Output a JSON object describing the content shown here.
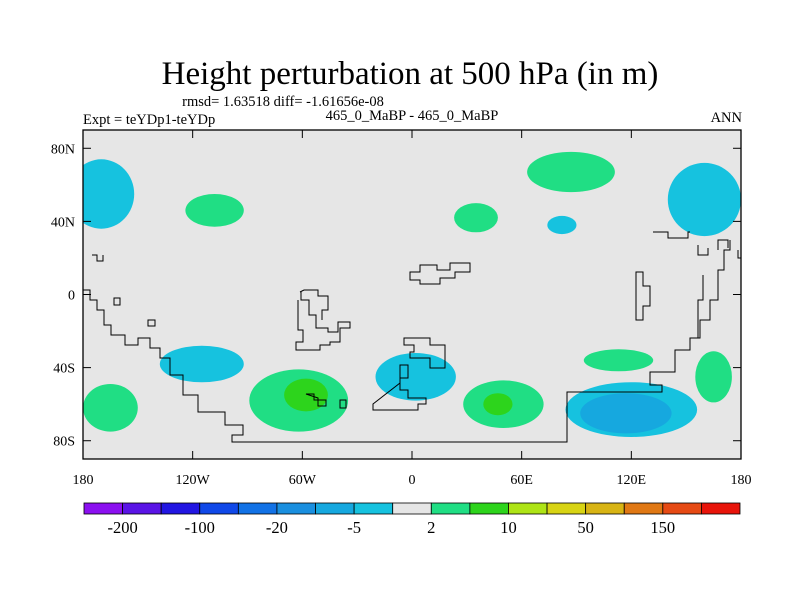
{
  "chart_data": {
    "type": "heatmap",
    "title": "Height perturbation at 500 hPa (in m)",
    "subtitle": "rmsd= 1.63518 diff= -1.61656e-08",
    "left_label": "Expt = teYDp1-teYDp",
    "center_label": "465_0_MaBP - 465_0_MaBP",
    "right_label": "ANN",
    "x_range": [
      -180,
      180
    ],
    "y_range": [
      -90,
      90
    ],
    "x_ticks": [
      {
        "value": -180,
        "label": "180"
      },
      {
        "value": -120,
        "label": "120W"
      },
      {
        "value": -60,
        "label": "60W"
      },
      {
        "value": 0,
        "label": "0"
      },
      {
        "value": 60,
        "label": "60E"
      },
      {
        "value": 120,
        "label": "120E"
      },
      {
        "value": 180,
        "label": "180"
      }
    ],
    "y_ticks": [
      {
        "value": 80,
        "label": "80N"
      },
      {
        "value": 40,
        "label": "40N"
      },
      {
        "value": 0,
        "label": "0"
      },
      {
        "value": -40,
        "label": "40S"
      },
      {
        "value": -80,
        "label": "80S"
      }
    ],
    "colorbar": {
      "levels": [
        -200,
        -150,
        -100,
        -50,
        -20,
        -10,
        -5,
        -2,
        2,
        5,
        10,
        20,
        50,
        100,
        150,
        200
      ],
      "labels": [
        "-200",
        "-100",
        "-20",
        "-5",
        "2",
        "10",
        "50",
        "150"
      ],
      "colors": [
        "#8b10f0",
        "#5a14e6",
        "#2216e2",
        "#1048e8",
        "#1272e6",
        "#1a8fdf",
        "#16a8df",
        "#16c2df",
        "#e6e6e6",
        "#20de84",
        "#2dd41c",
        "#aee416",
        "#d8d414",
        "#d8b414",
        "#e07814",
        "#e64a14",
        "#e8140a"
      ]
    },
    "anomalies": [
      {
        "kind": "negative",
        "level": "-5 to -2",
        "lon": -170,
        "lat": 55,
        "rx": 18,
        "ry": 19
      },
      {
        "kind": "positive",
        "level": "2 to 5",
        "lon": -108,
        "lat": 46,
        "rx": 16,
        "ry": 9
      },
      {
        "kind": "positive",
        "level": "2 to 5",
        "lon": 35,
        "lat": 42,
        "rx": 12,
        "ry": 8
      },
      {
        "kind": "positive",
        "level": "2 to 5",
        "lon": 87,
        "lat": 67,
        "rx": 24,
        "ry": 11
      },
      {
        "kind": "negative",
        "level": "-5 to -2",
        "lon": 82,
        "lat": 38,
        "rx": 8,
        "ry": 5
      },
      {
        "kind": "negative",
        "level": "-5 to -2",
        "lon": 160,
        "lat": 52,
        "rx": 20,
        "ry": 20
      },
      {
        "kind": "positive",
        "level": "2 to 5",
        "lon": -165,
        "lat": -62,
        "rx": 15,
        "ry": 13
      },
      {
        "kind": "negative",
        "level": "-5 to -2",
        "lon": -115,
        "lat": -38,
        "rx": 23,
        "ry": 10
      },
      {
        "kind": "positive",
        "level": "2 to 5",
        "lon": -62,
        "lat": -58,
        "rx": 27,
        "ry": 17
      },
      {
        "kind": "positive",
        "level": "5 to 10",
        "lon": -58,
        "lat": -55,
        "rx": 12,
        "ry": 9
      },
      {
        "kind": "negative",
        "level": "-5 to -2",
        "lon": 2,
        "lat": -45,
        "rx": 22,
        "ry": 13
      },
      {
        "kind": "positive",
        "level": "2 to 5",
        "lon": 50,
        "lat": -60,
        "rx": 22,
        "ry": 13
      },
      {
        "kind": "positive",
        "level": "5 to 10",
        "lon": 47,
        "lat": -60,
        "rx": 8,
        "ry": 6
      },
      {
        "kind": "negative",
        "level": "-5 to -2",
        "lon": 120,
        "lat": -63,
        "rx": 36,
        "ry": 15
      },
      {
        "kind": "negative",
        "level": "-10 to -5",
        "lon": 117,
        "lat": -65,
        "rx": 25,
        "ry": 11
      },
      {
        "kind": "positive",
        "level": "2 to 5",
        "lon": 113,
        "lat": -36,
        "rx": 19,
        "ry": 6
      },
      {
        "kind": "positive",
        "level": "2 to 5",
        "lon": 165,
        "lat": -45,
        "rx": 10,
        "ry": 14
      }
    ],
    "coastline_segments": 16
  }
}
